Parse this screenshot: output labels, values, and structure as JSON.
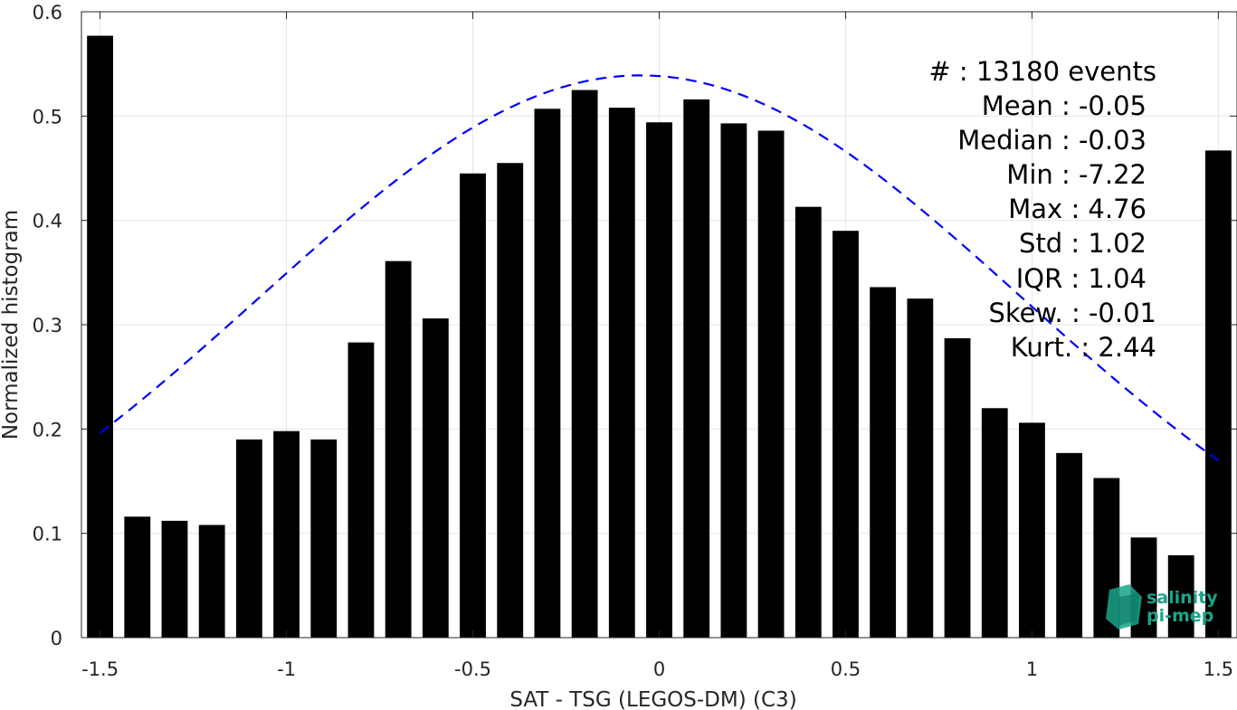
{
  "chart_data": {
    "type": "bar",
    "xlabel": "SAT - TSG (LEGOS-DM) (C3)",
    "ylabel": "Normalized histogram",
    "xlim": [
      -1.55,
      1.55
    ],
    "ylim": [
      0,
      0.6
    ],
    "xticks": [
      -1.5,
      -1,
      -0.5,
      0,
      0.5,
      1,
      1.5
    ],
    "xtick_labels": [
      "-1.5",
      "-1",
      "-0.5",
      "0",
      "0.5",
      "1",
      "1.5"
    ],
    "yticks": [
      0,
      0.1,
      0.2,
      0.3,
      0.4,
      0.5,
      0.6
    ],
    "ytick_labels": [
      "0",
      "0.1",
      "0.2",
      "0.3",
      "0.4",
      "0.5",
      "0.6"
    ],
    "grid": true,
    "bar_color": "#000000",
    "bar_width": 0.07,
    "bars": {
      "x": [
        -1.5,
        -1.4,
        -1.3,
        -1.2,
        -1.1,
        -1.0,
        -0.9,
        -0.8,
        -0.7,
        -0.6,
        -0.5,
        -0.4,
        -0.3,
        -0.2,
        -0.1,
        0.0,
        0.1,
        0.2,
        0.3,
        0.4,
        0.5,
        0.6,
        0.7,
        0.8,
        0.9,
        1.0,
        1.1,
        1.2,
        1.3,
        1.4,
        1.5
      ],
      "values": [
        0.577,
        0.116,
        0.112,
        0.108,
        0.19,
        0.198,
        0.19,
        0.283,
        0.361,
        0.306,
        0.445,
        0.455,
        0.507,
        0.525,
        0.508,
        0.494,
        0.516,
        0.493,
        0.486,
        0.413,
        0.39,
        0.336,
        0.325,
        0.287,
        0.22,
        0.206,
        0.177,
        0.153,
        0.096,
        0.079,
        0.467
      ]
    },
    "fit_curve": {
      "style": "dashed",
      "color": "#0000ff",
      "mean": -0.05,
      "std": 1.02,
      "peak": 0.539,
      "x_range": [
        -1.5,
        1.5
      ]
    },
    "stats_lines": [
      "#  : 13180 events",
      "Mean : -0.05",
      "Median : -0.03",
      "Min : -7.22",
      "Max : 4.76",
      "Std : 1.02",
      "IQR : 1.04",
      "Skew. : -0.01",
      "Kurt. : 2.44"
    ]
  },
  "logo": {
    "line1": "salinity",
    "line2": "pi-mep",
    "color": "#1aa58a"
  }
}
